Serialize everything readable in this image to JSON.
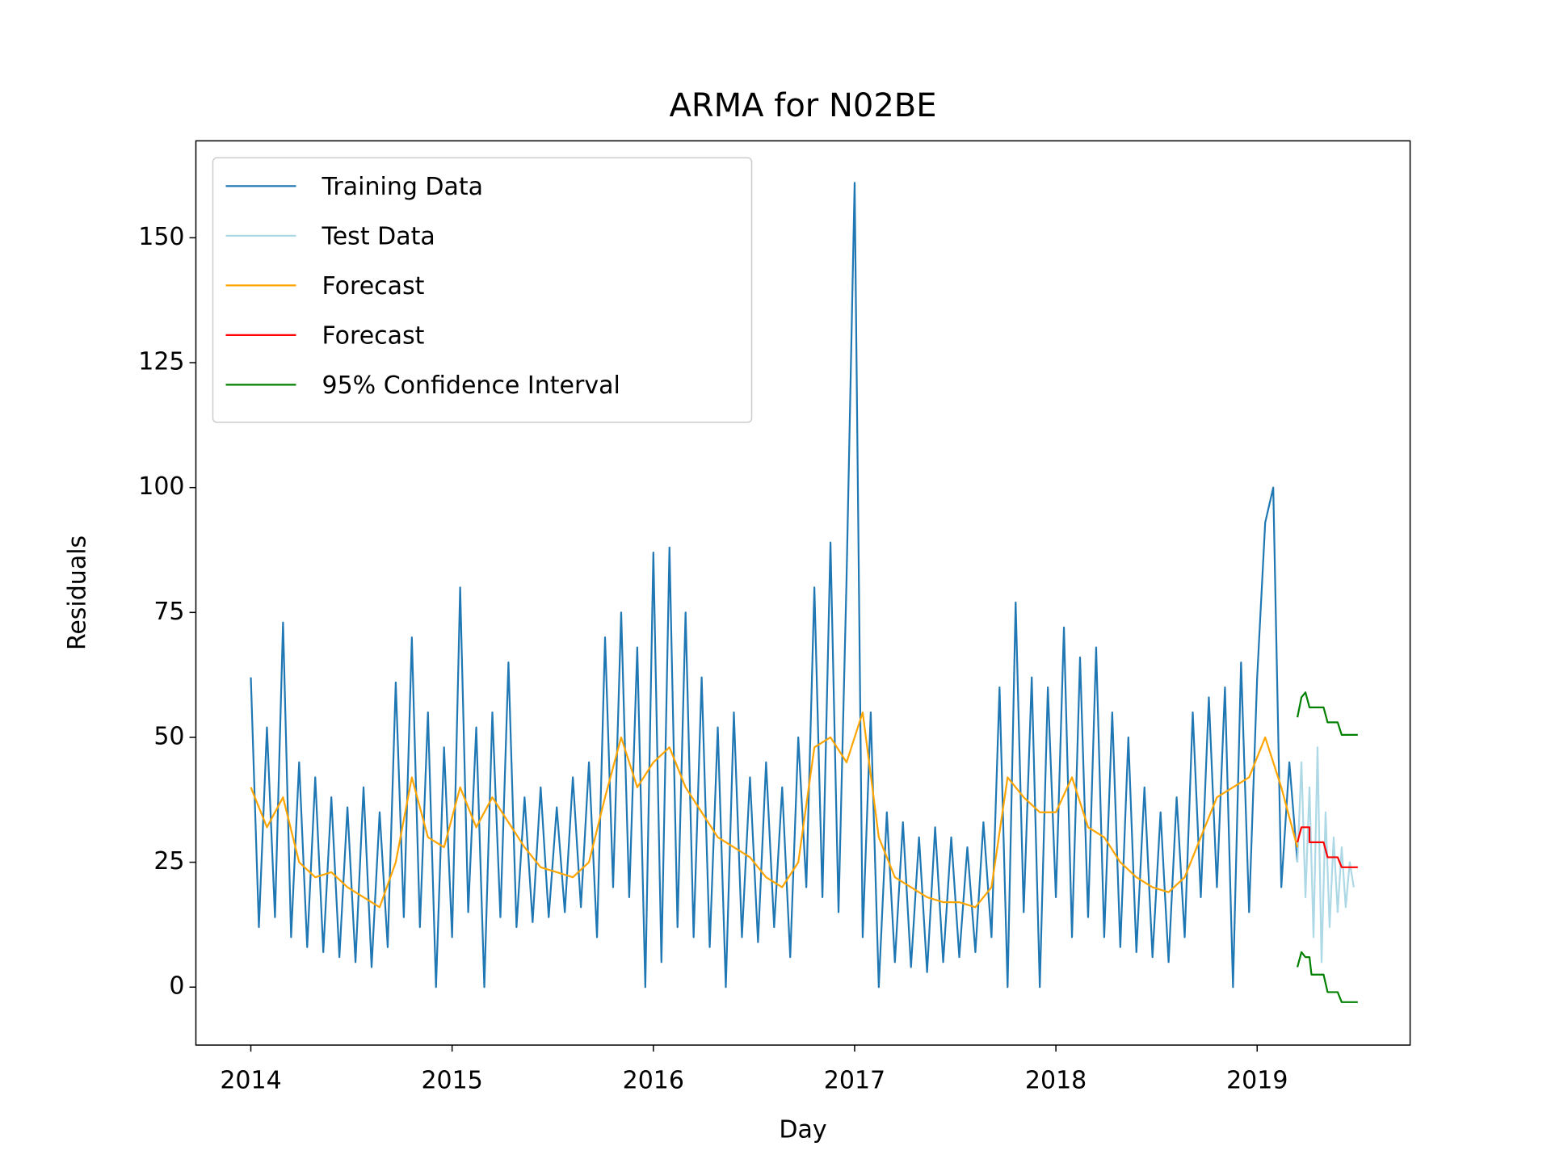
{
  "chart_data": {
    "type": "line",
    "title": "ARMA for N02BE",
    "x_label": "Day",
    "y_label": "Residuals",
    "xlim": [
      2013.727,
      2019.76
    ],
    "xticks": [
      2014,
      2015,
      2016,
      2017,
      2018,
      2019
    ],
    "ylim": [
      -11.6,
      169.4
    ],
    "yticks": [
      0,
      25,
      50,
      75,
      100,
      125,
      150
    ],
    "legend": "upper left",
    "grid": false,
    "series": [
      {
        "name": "Training Data",
        "color": "#1f77b4",
        "x": [
          2014.0,
          2014.04,
          2014.08,
          2014.12,
          2014.16,
          2014.2,
          2014.24,
          2014.28,
          2014.32,
          2014.36,
          2014.4,
          2014.44,
          2014.48,
          2014.52,
          2014.56,
          2014.6,
          2014.64,
          2014.68,
          2014.72,
          2014.76,
          2014.8,
          2014.84,
          2014.88,
          2014.92,
          2014.96,
          2015.0,
          2015.04,
          2015.08,
          2015.12,
          2015.16,
          2015.2,
          2015.24,
          2015.28,
          2015.32,
          2015.36,
          2015.4,
          2015.44,
          2015.48,
          2015.52,
          2015.56,
          2015.6,
          2015.64,
          2015.68,
          2015.72,
          2015.76,
          2015.8,
          2015.84,
          2015.88,
          2015.92,
          2015.96,
          2016.0,
          2016.04,
          2016.08,
          2016.12,
          2016.16,
          2016.2,
          2016.24,
          2016.28,
          2016.32,
          2016.36,
          2016.4,
          2016.44,
          2016.48,
          2016.52,
          2016.56,
          2016.6,
          2016.64,
          2016.68,
          2016.72,
          2016.76,
          2016.8,
          2016.84,
          2016.88,
          2016.92,
          2016.96,
          2017.0,
          2017.04,
          2017.08,
          2017.12,
          2017.16,
          2017.2,
          2017.24,
          2017.28,
          2017.32,
          2017.36,
          2017.4,
          2017.44,
          2017.48,
          2017.52,
          2017.56,
          2017.6,
          2017.64,
          2017.68,
          2017.72,
          2017.76,
          2017.8,
          2017.84,
          2017.88,
          2017.92,
          2017.96,
          2018.0,
          2018.04,
          2018.08,
          2018.12,
          2018.16,
          2018.2,
          2018.24,
          2018.28,
          2018.32,
          2018.36,
          2018.4,
          2018.44,
          2018.48,
          2018.52,
          2018.56,
          2018.6,
          2018.64,
          2018.68,
          2018.72,
          2018.76,
          2018.8,
          2018.84,
          2018.88,
          2018.92,
          2018.96,
          2019.0,
          2019.04,
          2019.08,
          2019.12,
          2019.16,
          2019.2
        ],
        "values": [
          62,
          12,
          52,
          14,
          73,
          10,
          45,
          8,
          42,
          7,
          38,
          6,
          36,
          5,
          40,
          4,
          35,
          8,
          61,
          14,
          70,
          12,
          55,
          0,
          48,
          10,
          80,
          15,
          52,
          0,
          55,
          14,
          65,
          12,
          38,
          13,
          40,
          14,
          36,
          15,
          42,
          16,
          45,
          10,
          70,
          20,
          75,
          18,
          68,
          0,
          87,
          5,
          88,
          12,
          75,
          10,
          62,
          8,
          52,
          0,
          55,
          10,
          42,
          9,
          45,
          12,
          40,
          6,
          50,
          20,
          80,
          18,
          89,
          15,
          82,
          161,
          10,
          55,
          0,
          35,
          5,
          33,
          4,
          30,
          3,
          32,
          5,
          30,
          6,
          28,
          7,
          33,
          10,
          60,
          0,
          77,
          15,
          62,
          0,
          60,
          18,
          72,
          10,
          66,
          14,
          68,
          10,
          55,
          8,
          50,
          7,
          40,
          6,
          35,
          5,
          38,
          10,
          55,
          18,
          58,
          20,
          60,
          0,
          65,
          15,
          62,
          93,
          100,
          20,
          45,
          25
        ]
      },
      {
        "name": "Test Data",
        "color": "#add8e6",
        "x": [
          2019.2,
          2019.22,
          2019.24,
          2019.26,
          2019.28,
          2019.3,
          2019.32,
          2019.34,
          2019.36,
          2019.38,
          2019.4,
          2019.42,
          2019.44,
          2019.46,
          2019.48
        ],
        "values": [
          25,
          45,
          18,
          40,
          10,
          48,
          5,
          35,
          12,
          30,
          15,
          28,
          16,
          25,
          20
        ]
      },
      {
        "name": "Forecast",
        "color": "#ffa500",
        "x": [
          2014.0,
          2014.08,
          2014.16,
          2014.24,
          2014.32,
          2014.4,
          2014.48,
          2014.56,
          2014.64,
          2014.72,
          2014.8,
          2014.88,
          2014.96,
          2015.04,
          2015.12,
          2015.2,
          2015.28,
          2015.36,
          2015.44,
          2015.52,
          2015.6,
          2015.68,
          2015.76,
          2015.84,
          2015.92,
          2016.0,
          2016.08,
          2016.16,
          2016.24,
          2016.32,
          2016.4,
          2016.48,
          2016.56,
          2016.64,
          2016.72,
          2016.8,
          2016.88,
          2016.96,
          2017.04,
          2017.12,
          2017.2,
          2017.28,
          2017.36,
          2017.44,
          2017.52,
          2017.6,
          2017.68,
          2017.76,
          2017.84,
          2017.92,
          2018.0,
          2018.08,
          2018.16,
          2018.24,
          2018.32,
          2018.4,
          2018.48,
          2018.56,
          2018.64,
          2018.72,
          2018.8,
          2018.88,
          2018.96,
          2019.04,
          2019.12,
          2019.2
        ],
        "values": [
          40,
          32,
          38,
          25,
          22,
          23,
          20,
          18,
          16,
          25,
          42,
          30,
          28,
          40,
          32,
          38,
          33,
          28,
          24,
          23,
          22,
          25,
          38,
          50,
          40,
          45,
          48,
          40,
          35,
          30,
          28,
          26,
          22,
          20,
          25,
          48,
          50,
          45,
          55,
          30,
          22,
          20,
          18,
          17,
          17,
          16,
          20,
          42,
          38,
          35,
          35,
          42,
          32,
          30,
          25,
          22,
          20,
          19,
          22,
          30,
          38,
          40,
          42,
          50,
          40,
          28
        ]
      },
      {
        "name": "Forecast",
        "color": "#ff0000",
        "x": [
          2019.2,
          2019.22,
          2019.26,
          2019.26,
          2019.33,
          2019.35,
          2019.4,
          2019.42,
          2019.5
        ],
        "values": [
          29,
          32,
          32,
          29,
          29,
          26,
          26,
          24,
          24
        ]
      },
      {
        "name": "95% Confidence Interval",
        "color": "#008000",
        "x": [
          2019.2,
          2019.22,
          2019.24,
          2019.26,
          2019.27,
          2019.33,
          2019.35,
          2019.4,
          2019.42,
          2019.5
        ],
        "upper": [
          54,
          58,
          59,
          56,
          56,
          56,
          53,
          53,
          50.5,
          50.5
        ],
        "lower": [
          4,
          7,
          6,
          6,
          2.5,
          2.5,
          -1,
          -1,
          -3,
          -3
        ]
      }
    ]
  }
}
